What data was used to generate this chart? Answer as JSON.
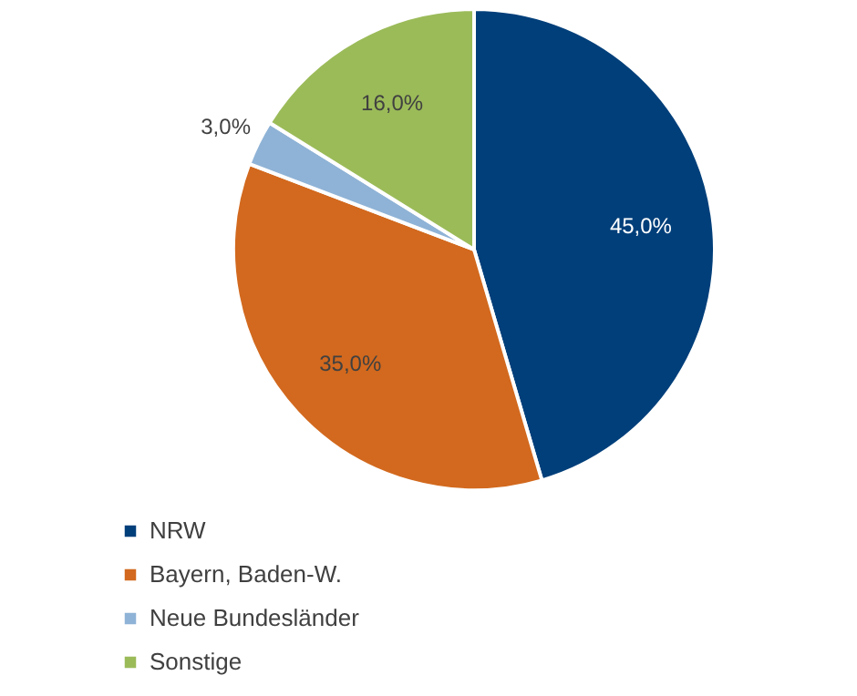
{
  "chart_data": {
    "type": "pie",
    "categories": [
      "NRW",
      "Bayern, Baden-W.",
      "Neue Bundesländer",
      "Sonstige"
    ],
    "values": [
      45,
      35,
      3,
      16
    ],
    "colors": [
      "#003f7a",
      "#d2691e",
      "#8fb3d6",
      "#9bbb59"
    ],
    "value_labels": [
      "45,0%",
      "35,0%",
      "3,0%",
      "16,0%"
    ],
    "legend": "bottom left"
  }
}
